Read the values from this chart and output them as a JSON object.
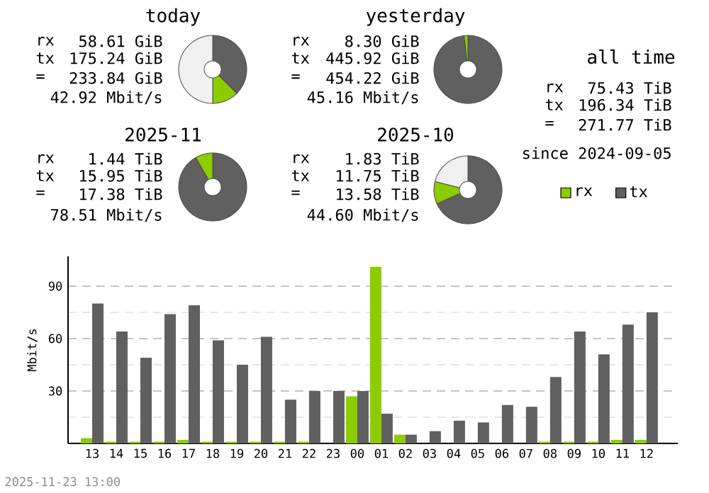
{
  "chart_data": [
    {
      "type": "donut",
      "title": "today",
      "categories": [
        null,
        null,
        null
      ],
      "values": [
        37.5,
        12.5,
        50
      ],
      "colors": [
        "#606060",
        "#8dcc00",
        "#f0f0f0"
      ],
      "annotations": [
        "rx",
        "58.61 GiB",
        "tx",
        "175.24 GiB",
        "=",
        "233.84 GiB",
        "42.92 Mbit/s"
      ]
    },
    {
      "type": "donut",
      "title": "yesterday",
      "categories": [
        null,
        null
      ],
      "values": [
        98.2,
        1.8
      ],
      "colors": [
        "#606060",
        "#8dcc00"
      ],
      "annotations": [
        "rx",
        "8.30 GiB",
        "tx",
        "445.92 GiB",
        "=",
        "454.22 GiB",
        "45.16 Mbit/s"
      ]
    },
    {
      "type": "donut",
      "title": "2025-11",
      "categories": [
        null,
        null
      ],
      "values": [
        91.7,
        8.3
      ],
      "colors": [
        "#606060",
        "#8dcc00"
      ],
      "annotations": [
        "rx",
        "1.44 TiB",
        "tx",
        "15.95 TiB",
        "=",
        "17.38 TiB",
        "78.51 Mbit/s"
      ]
    },
    {
      "type": "donut",
      "title": "2025-10",
      "categories": [
        null,
        null,
        null
      ],
      "values": [
        68.3,
        10.6,
        21.1
      ],
      "colors": [
        "#606060",
        "#8dcc00",
        "#f0f0f0"
      ],
      "annotations": [
        "rx",
        "1.83 TiB",
        "tx",
        "11.75 TiB",
        "=",
        "13.58 TiB",
        "44.60 Mbit/s"
      ]
    },
    {
      "type": "other",
      "title": "all time",
      "annotations": [
        "rx",
        "75.43 TiB",
        "tx",
        "196.34 TiB",
        "=",
        "271.77 TiB",
        "since 2024-09-05"
      ]
    },
    {
      "type": "bar",
      "ylabel": "Mbit/s",
      "categories": [
        "13",
        "14",
        "15",
        "16",
        "17",
        "18",
        "19",
        "20",
        "21",
        "22",
        "23",
        "00",
        "01",
        "02",
        "03",
        "04",
        "05",
        "06",
        "07",
        "08",
        "09",
        "10",
        "11",
        "12"
      ],
      "series": [
        {
          "name": "rx",
          "color": "#8dcc00",
          "values": [
            3,
            1,
            1,
            1,
            2,
            1,
            1,
            1,
            1,
            1,
            0,
            27,
            101,
            5,
            0,
            0,
            0,
            0,
            0,
            1,
            1,
            1,
            2,
            2
          ]
        },
        {
          "name": "tx",
          "color": "#606060",
          "values": [
            80,
            64,
            49,
            74,
            79,
            59,
            45,
            61,
            25,
            30,
            30,
            30,
            17,
            5,
            7,
            13,
            12,
            22,
            21,
            38,
            64,
            51,
            68,
            75
          ]
        }
      ],
      "ylim": [
        0,
        107
      ],
      "yticks": [
        {
          "value": 15,
          "label": null
        },
        30,
        {
          "value": 45,
          "label": null
        },
        60,
        {
          "value": 75,
          "label": null
        },
        90
      ],
      "grid": "y",
      "legend": "top right",
      "annotations": [
        "2025-11-23 13:00"
      ]
    }
  ]
}
